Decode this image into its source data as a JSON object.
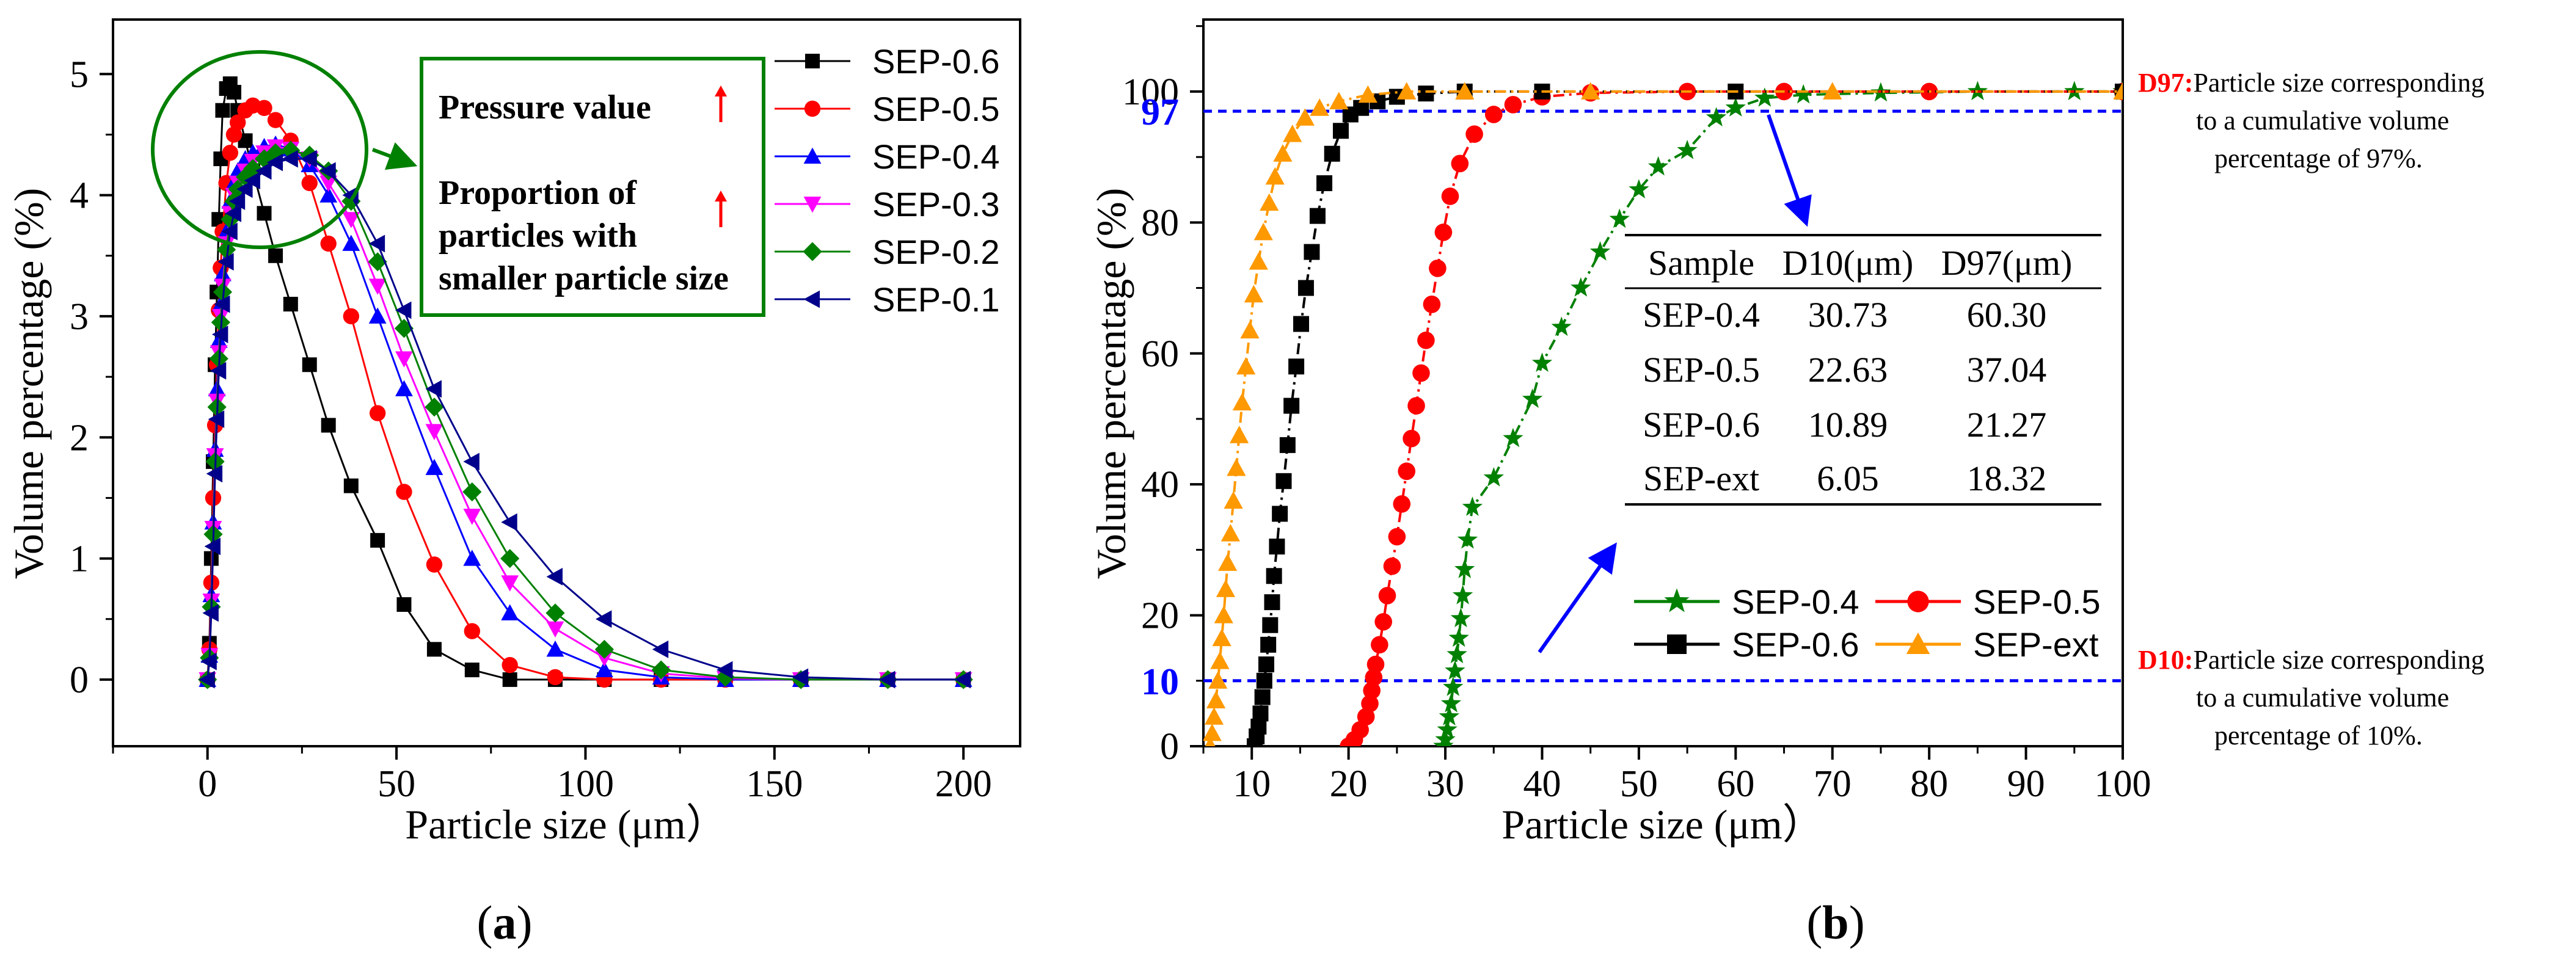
{
  "chart_data": [
    {
      "type": "line",
      "panel_label": "a",
      "xlabel": "Particle size (μm）",
      "ylabel": "Volume percentage (%)",
      "xlim": [
        -25,
        215
      ],
      "ylim": [
        -0.55,
        5.45
      ],
      "xticks": [
        0,
        50,
        100,
        150,
        200
      ],
      "yticks": [
        0,
        1,
        2,
        3,
        4,
        5
      ],
      "x": [
        0,
        0.5,
        1,
        1.5,
        2,
        2.5,
        3,
        3.5,
        4,
        5,
        6,
        7,
        8,
        10,
        12,
        15,
        18,
        22,
        27,
        32,
        38,
        45,
        52,
        60,
        70,
        80,
        92,
        105,
        120,
        137,
        157,
        180,
        200
      ],
      "annotation_lines": [
        "Pressure value",
        "Proportion of",
        "particles with",
        "smaller particle size"
      ],
      "series": [
        {
          "name": "SEP-0.6",
          "color": "#000000",
          "marker": "square",
          "y": [
            0,
            0.3,
            1.0,
            1.8,
            2.6,
            3.2,
            3.8,
            4.3,
            4.7,
            4.88,
            4.92,
            4.85,
            4.7,
            4.45,
            4.2,
            3.85,
            3.5,
            3.1,
            2.6,
            2.1,
            1.6,
            1.15,
            0.62,
            0.25,
            0.08,
            0.0,
            0.0,
            0.0,
            0.0,
            0.0,
            0.0,
            0.0,
            0.0
          ]
        },
        {
          "name": "SEP-0.5",
          "color": "#ff0000",
          "marker": "circle",
          "y": [
            0,
            0.25,
            0.8,
            1.5,
            2.1,
            2.6,
            3.05,
            3.4,
            3.7,
            4.1,
            4.35,
            4.5,
            4.6,
            4.7,
            4.74,
            4.72,
            4.62,
            4.45,
            4.1,
            3.6,
            3.0,
            2.2,
            1.55,
            0.95,
            0.4,
            0.12,
            0.02,
            0.0,
            0.0,
            0.0,
            0.0,
            0.0,
            0.0
          ]
        },
        {
          "name": "SEP-0.4",
          "color": "#0000ff",
          "marker": "triangle-up",
          "y": [
            0,
            0.2,
            0.7,
            1.3,
            1.9,
            2.4,
            2.8,
            3.1,
            3.35,
            3.7,
            3.95,
            4.1,
            4.2,
            4.3,
            4.35,
            4.4,
            4.42,
            4.38,
            4.25,
            4.0,
            3.6,
            3.0,
            2.4,
            1.75,
            1.0,
            0.55,
            0.25,
            0.08,
            0.02,
            0.0,
            0.0,
            0.0,
            0.0
          ]
        },
        {
          "name": "SEP-0.3",
          "color": "#ff00ff",
          "marker": "triangle-down",
          "y": [
            0,
            0.2,
            0.65,
            1.25,
            1.85,
            2.3,
            2.7,
            3.0,
            3.25,
            3.6,
            3.85,
            4.0,
            4.1,
            4.2,
            4.28,
            4.35,
            4.4,
            4.38,
            4.3,
            4.1,
            3.8,
            3.25,
            2.65,
            2.05,
            1.35,
            0.8,
            0.42,
            0.18,
            0.05,
            0.01,
            0.0,
            0.0,
            0.0
          ]
        },
        {
          "name": "SEP-0.2",
          "color": "#008000",
          "marker": "diamond",
          "y": [
            0,
            0.18,
            0.6,
            1.2,
            1.8,
            2.25,
            2.65,
            2.95,
            3.2,
            3.55,
            3.8,
            3.95,
            4.05,
            4.15,
            4.22,
            4.3,
            4.35,
            4.37,
            4.33,
            4.2,
            3.95,
            3.45,
            2.9,
            2.25,
            1.55,
            1.0,
            0.55,
            0.25,
            0.08,
            0.02,
            0.0,
            0.0,
            0.0
          ]
        },
        {
          "name": "SEP-0.1",
          "color": "#00008b",
          "marker": "triangle-left",
          "y": [
            0,
            0.15,
            0.55,
            1.1,
            1.7,
            2.15,
            2.55,
            2.85,
            3.1,
            3.45,
            3.7,
            3.85,
            3.95,
            4.05,
            4.12,
            4.2,
            4.27,
            4.3,
            4.3,
            4.2,
            4.0,
            3.6,
            3.05,
            2.4,
            1.8,
            1.3,
            0.85,
            0.5,
            0.25,
            0.08,
            0.02,
            0.0,
            0.0
          ]
        }
      ]
    },
    {
      "type": "line",
      "panel_label": "b",
      "xlabel": "Particle size (μm）",
      "ylabel": "Volume percentage (%)",
      "xlim": [
        5,
        100
      ],
      "ylim": [
        0,
        111
      ],
      "xticks": [
        10,
        20,
        30,
        40,
        50,
        60,
        70,
        80,
        90,
        100
      ],
      "yticks": [
        0,
        20,
        40,
        60,
        80,
        100
      ],
      "reference_lines": [
        {
          "value": 97,
          "label": "97",
          "color": "#0000ff"
        },
        {
          "value": 10,
          "label": "10",
          "color": "#0000ff"
        }
      ],
      "notes": [
        {
          "lead": "D97:",
          "lines": [
            "Particle size corresponding",
            "to a cumulative volume",
            "percentage of 97%."
          ]
        },
        {
          "lead": "D10:",
          "lines": [
            "Particle size corresponding",
            "to a cumulative volume",
            "percentage of 10%."
          ]
        }
      ],
      "table": {
        "header": [
          "Sample",
          "D10(μm)",
          "D97(μm)"
        ],
        "rows": [
          [
            "SEP-0.4",
            "30.73",
            "60.30"
          ],
          [
            "SEP-0.5",
            "22.63",
            "37.04"
          ],
          [
            "SEP-0.6",
            "10.89",
            "21.27"
          ],
          [
            "SEP-ext",
            "6.05",
            "18.32"
          ]
        ]
      },
      "series": [
        {
          "name": "SEP-0.4",
          "color": "#008000",
          "marker": "star",
          "points": [
            [
              29.8,
              0
            ],
            [
              30,
              1
            ],
            [
              30.2,
              2.5
            ],
            [
              30.4,
              4.5
            ],
            [
              30.6,
              6.5
            ],
            [
              30.8,
              9
            ],
            [
              31,
              11.5
            ],
            [
              31.2,
              14
            ],
            [
              31.4,
              16.5
            ],
            [
              31.6,
              19.5
            ],
            [
              31.8,
              23
            ],
            [
              32,
              27
            ],
            [
              32.3,
              31.5
            ],
            [
              32.8,
              36.5
            ],
            [
              35,
              41
            ],
            [
              37,
              47
            ],
            [
              39,
              53
            ],
            [
              40,
              58.5
            ],
            [
              42,
              64
            ],
            [
              44,
              70
            ],
            [
              46,
              75.5
            ],
            [
              48,
              80.5
            ],
            [
              50,
              85
            ],
            [
              52,
              88.5
            ],
            [
              55,
              91
            ],
            [
              58,
              96
            ],
            [
              60,
              97.5
            ],
            [
              63,
              99
            ],
            [
              67,
              99.5
            ],
            [
              75,
              99.8
            ],
            [
              85,
              100
            ],
            [
              95,
              100
            ],
            [
              100,
              100
            ]
          ]
        },
        {
          "name": "SEP-0.5",
          "color": "#ff0000",
          "marker": "circle",
          "points": [
            [
              20,
              0
            ],
            [
              20.6,
              1
            ],
            [
              21.2,
              2.5
            ],
            [
              21.8,
              4.5
            ],
            [
              22.2,
              6.5
            ],
            [
              22.4,
              8.5
            ],
            [
              22.6,
              10.5
            ],
            [
              22.8,
              12.5
            ],
            [
              23.2,
              15.5
            ],
            [
              23.6,
              19
            ],
            [
              24,
              23
            ],
            [
              24.5,
              27.5
            ],
            [
              25,
              32
            ],
            [
              25.5,
              37
            ],
            [
              26,
              42
            ],
            [
              26.5,
              47
            ],
            [
              27,
              52
            ],
            [
              27.5,
              57
            ],
            [
              28,
              62
            ],
            [
              28.6,
              67.5
            ],
            [
              29.2,
              73
            ],
            [
              29.8,
              78.5
            ],
            [
              30.5,
              84
            ],
            [
              31.5,
              89
            ],
            [
              33,
              93.5
            ],
            [
              35,
              96.5
            ],
            [
              37,
              98
            ],
            [
              40,
              99.2
            ],
            [
              45,
              99.8
            ],
            [
              55,
              100
            ],
            [
              65,
              100
            ],
            [
              80,
              100
            ],
            [
              100,
              100
            ]
          ]
        },
        {
          "name": "SEP-0.6",
          "color": "#000000",
          "marker": "square",
          "points": [
            [
              10.3,
              0
            ],
            [
              10.5,
              1.5
            ],
            [
              10.7,
              3
            ],
            [
              10.9,
              5
            ],
            [
              11.1,
              7.5
            ],
            [
              11.3,
              10
            ],
            [
              11.5,
              12.5
            ],
            [
              11.7,
              15.5
            ],
            [
              11.9,
              18.5
            ],
            [
              12.1,
              22
            ],
            [
              12.3,
              26
            ],
            [
              12.6,
              30.5
            ],
            [
              12.9,
              35.5
            ],
            [
              13.3,
              40.5
            ],
            [
              13.7,
              46
            ],
            [
              14.1,
              52
            ],
            [
              14.6,
              58
            ],
            [
              15.1,
              64.5
            ],
            [
              15.6,
              70
            ],
            [
              16.2,
              75.5
            ],
            [
              16.8,
              81
            ],
            [
              17.5,
              86
            ],
            [
              18.3,
              90.5
            ],
            [
              19.2,
              94
            ],
            [
              20.2,
              96.5
            ],
            [
              21.3,
              97.5
            ],
            [
              23,
              98.5
            ],
            [
              25,
              99.2
            ],
            [
              28,
              99.7
            ],
            [
              32,
              100
            ],
            [
              40,
              100
            ],
            [
              60,
              100
            ],
            [
              100,
              100
            ]
          ]
        },
        {
          "name": "SEP-ext",
          "color": "#ff9900",
          "marker": "triangle-up",
          "points": [
            [
              5.7,
              0
            ],
            [
              5.9,
              2
            ],
            [
              6.1,
              4.5
            ],
            [
              6.3,
              7
            ],
            [
              6.5,
              10
            ],
            [
              6.7,
              13
            ],
            [
              6.9,
              16.5
            ],
            [
              7.1,
              20
            ],
            [
              7.3,
              24
            ],
            [
              7.5,
              28
            ],
            [
              7.8,
              32.5
            ],
            [
              8.1,
              37.5
            ],
            [
              8.4,
              42.5
            ],
            [
              8.7,
              47.5
            ],
            [
              9,
              52.5
            ],
            [
              9.4,
              58
            ],
            [
              9.8,
              63.5
            ],
            [
              10.2,
              69
            ],
            [
              10.7,
              74
            ],
            [
              11.2,
              78.5
            ],
            [
              11.8,
              83
            ],
            [
              12.4,
              87
            ],
            [
              13.2,
              90.5
            ],
            [
              14.2,
              93.5
            ],
            [
              15.5,
              96
            ],
            [
              17,
              97.5
            ],
            [
              19,
              98.5
            ],
            [
              22,
              99.5
            ],
            [
              26,
              100
            ],
            [
              32,
              100
            ],
            [
              45,
              100
            ],
            [
              70,
              100
            ],
            [
              100,
              100
            ]
          ]
        }
      ]
    }
  ]
}
